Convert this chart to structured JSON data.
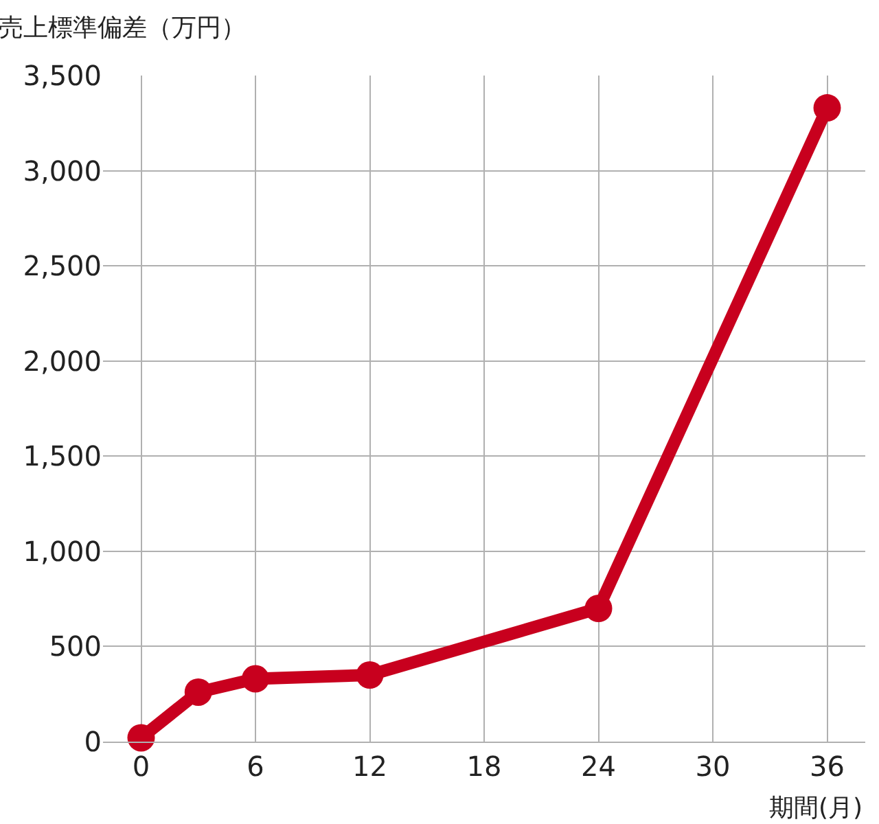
{
  "chart_data": {
    "type": "line",
    "ylabel": "売上標準偏差（万円）",
    "xlabel": "期間(月)",
    "x": [
      0,
      3,
      6,
      12,
      24,
      36
    ],
    "series": [
      {
        "color": "#c8001e",
        "values": [
          20,
          260,
          330,
          350,
          700,
          3330
        ]
      }
    ],
    "xlim": [
      -2,
      38
    ],
    "xticks": [
      0,
      6,
      12,
      18,
      24,
      30,
      36
    ],
    "ylim": [
      0,
      3500
    ],
    "yticks": [
      {
        "value": 0,
        "label": "0"
      },
      {
        "value": 500,
        "label": "500"
      },
      {
        "value": 1000,
        "label": "1,000"
      },
      {
        "value": 1500,
        "label": "1,500"
      },
      {
        "value": 2000,
        "label": "2,000"
      },
      {
        "value": 2500,
        "label": "2,500"
      },
      {
        "value": 3000,
        "label": "3,000"
      },
      {
        "value": 3500,
        "label": "3,500"
      }
    ],
    "grid": true,
    "marker": "circle",
    "line_style": "solid",
    "legend": false
  }
}
